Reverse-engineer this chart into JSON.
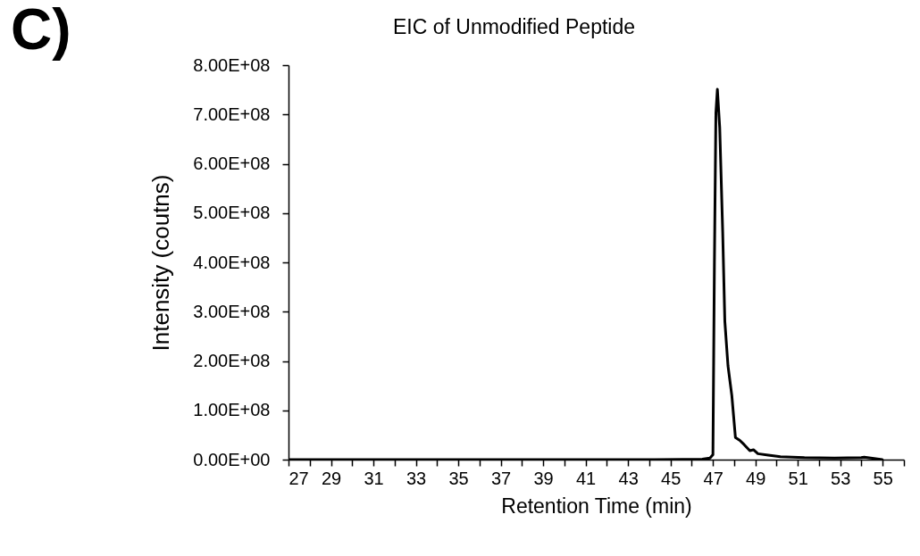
{
  "chart_data": {
    "type": "line",
    "title": "EIC of Unmodified Peptide",
    "xlabel": "Retention Time (min)",
    "ylabel": "Intensity (coutns)",
    "annotations": [
      "C)"
    ],
    "x": [
      27,
      44.25,
      46.5,
      46.86,
      47.0,
      47.07,
      47.14,
      47.21,
      47.32,
      47.46,
      47.56,
      47.71,
      47.89,
      48.06,
      48.27,
      48.48,
      48.74,
      48.91,
      49.12,
      49.61,
      50.18,
      51.31,
      52.72,
      53.99,
      54.13,
      54.98
    ],
    "series": [
      {
        "color": "#000000",
        "values": [
          0,
          0,
          1000000,
          3000000,
          10000000,
          401000000,
          703000000,
          751000000,
          673000000,
          462000000,
          281000000,
          190000000,
          130000000,
          45000000,
          39000000,
          30000000,
          18000000,
          20000000,
          12000000,
          9000000,
          6000000,
          4000000,
          3000000,
          4000000,
          5000000,
          0
        ]
      }
    ],
    "xlim": [
      27,
      56
    ],
    "xticks": [
      27,
      {
        "value": 28,
        "label": null
      },
      29,
      {
        "value": 30,
        "label": null
      },
      31,
      {
        "value": 32,
        "label": null
      },
      33,
      {
        "value": 34,
        "label": null
      },
      35,
      {
        "value": 36,
        "label": null
      },
      37,
      {
        "value": 38,
        "label": null
      },
      39,
      {
        "value": 40,
        "label": null
      },
      41,
      {
        "value": 42,
        "label": null
      },
      43,
      {
        "value": 44,
        "label": null
      },
      45,
      {
        "value": 46,
        "label": null
      },
      47,
      {
        "value": 48,
        "label": null
      },
      49,
      {
        "value": 50,
        "label": null
      },
      51,
      {
        "value": 52,
        "label": null
      },
      53,
      {
        "value": 54,
        "label": null
      },
      55,
      {
        "value": 56,
        "label": null
      }
    ],
    "ylim": [
      0,
      800000000
    ],
    "yticks": [
      {
        "value": 0,
        "label": "0.00E+00"
      },
      {
        "value": 100000000,
        "label": "1.00E+08"
      },
      {
        "value": 200000000,
        "label": "2.00E+08"
      },
      {
        "value": 300000000,
        "label": "3.00E+08"
      },
      {
        "value": 400000000,
        "label": "4.00E+08"
      },
      {
        "value": 500000000,
        "label": "5.00E+08"
      },
      {
        "value": 600000000,
        "label": "6.00E+08"
      },
      {
        "value": 700000000,
        "label": "7.00E+08"
      },
      {
        "value": 800000000,
        "label": "8.00E+08"
      }
    ],
    "grid": false,
    "marker": "none",
    "line_style": "solid"
  }
}
